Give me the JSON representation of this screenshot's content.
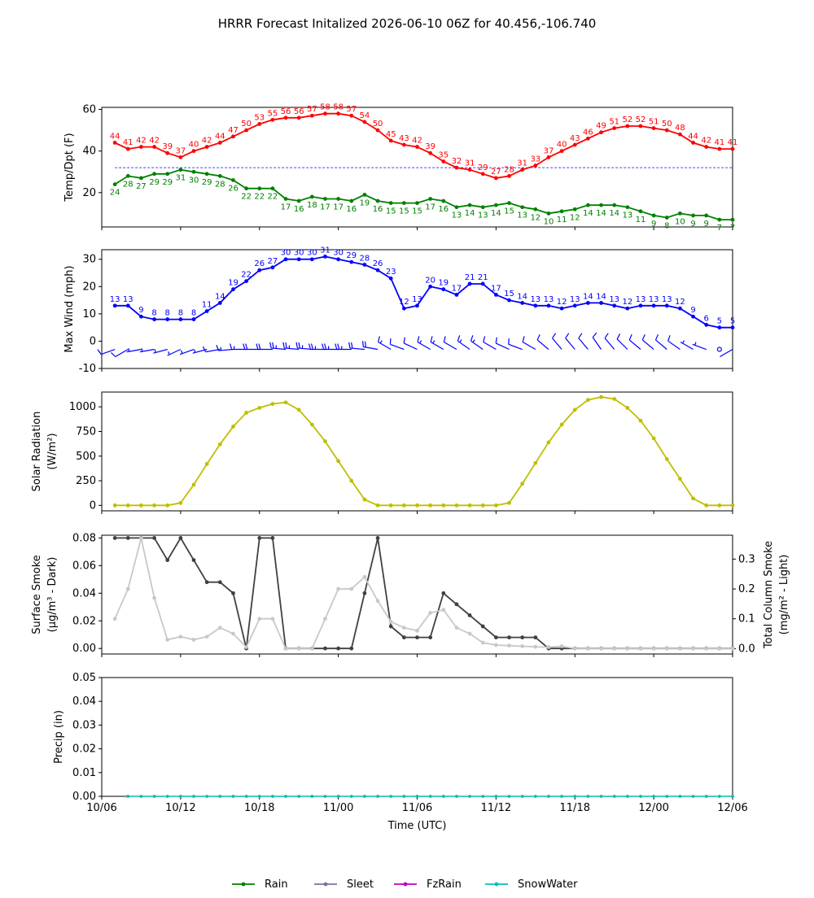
{
  "title": "HRRR Forecast Initalized 2026-06-10 06Z for 40.456,-106.740",
  "colors": {
    "temp": "#ff0000",
    "dewpoint": "#008000",
    "wind": "#0000ff",
    "solar": "#bfbf00",
    "smoke_dark": "#404040",
    "smoke_light": "#c8c8c8",
    "rain": "#008000",
    "sleet": "#7f6f9f",
    "fzrain": "#bf00bf",
    "snowwater": "#00bfbf"
  },
  "xaxis": {
    "label": "Time (UTC)",
    "ticks": [
      "10/06",
      "10/12",
      "10/18",
      "11/00",
      "11/06",
      "11/12",
      "11/18",
      "12/00",
      "12/06"
    ],
    "tick_hours": [
      0,
      6,
      12,
      18,
      24,
      30,
      36,
      42,
      48
    ],
    "range": [
      0,
      48
    ]
  },
  "legend": {
    "items": [
      "Rain",
      "Sleet",
      "FzRain",
      "SnowWater"
    ],
    "placement": "bottom-center"
  },
  "chart_data": [
    {
      "type": "line",
      "ylabel": "Temp/Dpt (F)",
      "ylim": [
        3.5,
        61
      ],
      "yticks": [
        20,
        40,
        60
      ],
      "freezing_line": 32,
      "x_start_hour": 1,
      "series": [
        {
          "key": "temp",
          "values": [
            44,
            41,
            42,
            42,
            39,
            37,
            40,
            42,
            44,
            47,
            50,
            53,
            55,
            56,
            56,
            57,
            58,
            58,
            57,
            54,
            50,
            45,
            43,
            42,
            39,
            35,
            32,
            31,
            29,
            27,
            28,
            31,
            33,
            37,
            40,
            43,
            46,
            49,
            51,
            52,
            52,
            51,
            50,
            48,
            44,
            42,
            41,
            41
          ]
        },
        {
          "key": "dewpoint",
          "values": [
            24,
            28,
            27,
            29,
            29,
            31,
            30,
            29,
            28,
            26,
            22,
            22,
            22,
            17,
            16,
            18,
            17,
            17,
            16,
            19,
            16,
            15,
            15,
            15,
            17,
            16,
            13,
            14,
            13,
            14,
            15,
            13,
            12,
            10,
            11,
            12,
            14,
            14,
            14,
            13,
            11,
            9,
            8,
            10,
            9,
            9,
            7,
            7
          ]
        }
      ]
    },
    {
      "type": "line",
      "ylabel": "Max Wind (mph)",
      "ylim": [
        -10,
        33.5
      ],
      "yticks": [
        -10,
        0,
        10,
        20,
        30
      ],
      "x_start_hour": 1,
      "series": [
        {
          "key": "wind",
          "values": [
            13,
            13,
            9,
            8,
            8,
            8,
            8,
            11,
            14,
            19,
            22,
            26,
            27,
            30,
            30,
            30,
            31,
            30,
            29,
            28,
            26,
            23,
            12,
            13,
            20,
            19,
            17,
            21,
            21,
            17,
            15,
            14,
            13,
            13,
            12,
            13,
            14,
            14,
            13,
            12,
            13,
            13,
            13,
            12,
            9,
            6,
            5,
            5
          ]
        }
      ],
      "wind_barbs": {
        "y": -3,
        "directions_deg": [
          250,
          240,
          260,
          260,
          255,
          245,
          250,
          255,
          260,
          265,
          270,
          270,
          270,
          275,
          275,
          275,
          270,
          270,
          270,
          275,
          280,
          300,
          290,
          295,
          300,
          300,
          300,
          305,
          305,
          300,
          295,
          290,
          300,
          310,
          320,
          320,
          320,
          325,
          320,
          315,
          310,
          310,
          310,
          305,
          300,
          290,
          0,
          240
        ]
      }
    },
    {
      "type": "line",
      "ylabel": "Solar Radiation",
      "ylabel_units": "(W/m²)",
      "ylim": [
        -55,
        1150
      ],
      "yticks": [
        0,
        250,
        500,
        750,
        1000
      ],
      "x_start_hour": 1,
      "series": [
        {
          "key": "solar",
          "values": [
            0,
            0,
            0,
            0,
            0,
            25,
            210,
            420,
            620,
            800,
            940,
            990,
            1030,
            1045,
            970,
            820,
            650,
            450,
            250,
            60,
            0,
            0,
            0,
            0,
            0,
            0,
            0,
            0,
            0,
            0,
            25,
            220,
            430,
            640,
            820,
            970,
            1070,
            1100,
            1080,
            990,
            860,
            680,
            470,
            270,
            70,
            0,
            0,
            0
          ]
        }
      ]
    },
    {
      "type": "line",
      "ylabel": "Surface Smoke",
      "ylabel_units": "(μg/m³ - Dark)",
      "ylim": [
        -0.004,
        0.082
      ],
      "yticks": [
        0.0,
        0.02,
        0.04,
        0.06,
        0.08
      ],
      "y2label": "Total Column Smoke",
      "y2label_units": "(mg/m² - Light)",
      "y2lim": [
        -0.018,
        0.38
      ],
      "y2ticks": [
        0.0,
        0.1,
        0.2,
        0.3
      ],
      "x_start_hour": 1,
      "series": [
        {
          "key": "smoke_dark",
          "values": [
            0.08,
            0.08,
            0.08,
            0.08,
            0.064,
            0.08,
            0.064,
            0.048,
            0.048,
            0.04,
            0,
            0.08,
            0.08,
            0,
            0,
            0,
            0,
            0,
            0,
            0.04,
            0.08,
            0.016,
            0.008,
            0.008,
            0.008,
            0.04,
            0.032,
            0.024,
            0.016,
            0.008,
            0.008,
            0.008,
            0.008,
            0,
            0,
            0,
            0,
            0,
            0,
            0,
            0,
            0,
            0,
            0,
            0,
            0,
            0,
            0
          ]
        },
        {
          "key": "smoke_light",
          "axis": "right",
          "values": [
            0.1,
            0.2,
            0.37,
            0.17,
            0.03,
            0.04,
            0.03,
            0.04,
            0.07,
            0.05,
            0.005,
            0.1,
            0.1,
            0,
            0,
            0,
            0.1,
            0.2,
            0.2,
            0.24,
            0.16,
            0.09,
            0.07,
            0.06,
            0.12,
            0.13,
            0.07,
            0.05,
            0.02,
            0.012,
            0.01,
            0.008,
            0.006,
            0.005,
            0.008,
            0,
            0,
            0,
            0,
            0,
            0,
            0,
            0,
            0,
            0,
            0,
            0,
            0
          ]
        }
      ]
    },
    {
      "type": "line",
      "ylabel": "Precip (in)",
      "ylim": [
        0,
        0.05
      ],
      "yticks": [
        0.0,
        0.01,
        0.02,
        0.03,
        0.04,
        0.05
      ],
      "x_start_hour": 2,
      "series": [
        {
          "key": "rain",
          "name": "Rain",
          "values": [
            0,
            0,
            0,
            0,
            0,
            0,
            0,
            0,
            0,
            0,
            0,
            0,
            0,
            0,
            0,
            0,
            0,
            0,
            0,
            0,
            0,
            0,
            0,
            0,
            0,
            0,
            0,
            0,
            0,
            0,
            0,
            0,
            0,
            0,
            0,
            0,
            0,
            0,
            0,
            0,
            0,
            0,
            0,
            0,
            0,
            0,
            0
          ]
        },
        {
          "key": "snowwater",
          "name": "SnowWater",
          "values": [
            0,
            0,
            0,
            0,
            0,
            0,
            0,
            0,
            0,
            0,
            0,
            0,
            0,
            0,
            0,
            0,
            0,
            0,
            0,
            0,
            0,
            0,
            0,
            0,
            0,
            0,
            0,
            0,
            0,
            0,
            0,
            0,
            0,
            0,
            0,
            0,
            0,
            0,
            0,
            0,
            0,
            0,
            0,
            0,
            0,
            0,
            0
          ]
        }
      ]
    }
  ]
}
